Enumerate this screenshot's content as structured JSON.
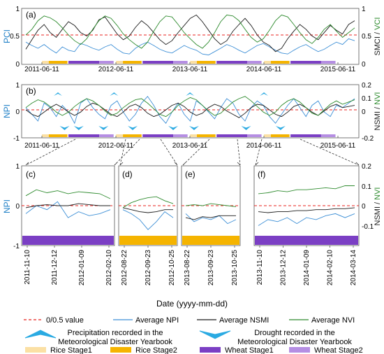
{
  "colors": {
    "red": "#e8231f",
    "blue": "#3d8fd6",
    "black": "#1a1a1a",
    "green": "#2e8b2e",
    "pci_label": "#1e7fc6",
    "vci_label": "#2e8b2e",
    "rice1": "#fbe0a4",
    "rice2": "#f5b400",
    "wheat1": "#7b3fc4",
    "wheat2": "#b58ee3",
    "symbol": "#2aaae2"
  },
  "chart_data": [
    {
      "panel": "(a)",
      "type": "line",
      "x_range": [
        "2011-06-11",
        "2015-06-11"
      ],
      "ylim_left": [
        0,
        1
      ],
      "ylim_right": [
        0,
        1
      ],
      "y_ticks_left": [
        "0",
        "0.5",
        "1"
      ],
      "y_ticks_right": [
        "0",
        "0.5",
        "1"
      ],
      "x_ticks": [
        "2011-06-11",
        "2012-06-11",
        "2013-06-11",
        "2014-06-11",
        "2015-06-11"
      ],
      "ylabel_left": "PCI",
      "ylabel_right_a": "SMCI",
      "ylabel_sep": " / ",
      "ylabel_right_b": "VCI",
      "reference_line": 0.5,
      "series": [
        {
          "name": "Average NPI",
          "values": [
            0.35,
            0.28,
            0.22,
            0.3,
            0.2,
            0.12,
            0.25,
            0.18,
            0.15,
            0.32,
            0.28,
            0.22,
            0.18,
            0.25,
            0.3,
            0.2,
            0.12,
            0.1,
            0.22,
            0.3,
            0.35,
            0.28,
            0.2,
            0.15,
            0.12,
            0.2,
            0.28,
            0.22,
            0.18,
            0.1,
            0.08,
            0.15,
            0.22,
            0.3,
            0.25,
            0.18,
            0.12,
            0.2,
            0.28,
            0.32,
            0.25,
            0.18,
            0.12,
            0.1,
            0.18,
            0.25,
            0.3,
            0.22,
            0.15,
            0.2,
            0.28,
            0.35,
            0.3,
            0.42,
            0.38
          ]
        },
        {
          "name": "Average NSMI",
          "values": [
            0.2,
            0.4,
            0.6,
            0.72,
            0.55,
            0.45,
            0.62,
            0.78,
            0.7,
            0.55,
            0.48,
            0.6,
            0.82,
            0.88,
            0.7,
            0.52,
            0.4,
            0.48,
            0.66,
            0.8,
            0.7,
            0.55,
            0.4,
            0.3,
            0.38,
            0.55,
            0.7,
            0.85,
            0.92,
            0.78,
            0.6,
            0.42,
            0.3,
            0.38,
            0.58,
            0.72,
            0.85,
            0.7,
            0.5,
            0.35,
            0.28,
            0.15,
            0.22,
            0.42,
            0.58,
            0.72,
            0.62,
            0.48,
            0.4,
            0.55,
            0.7,
            0.6,
            0.52,
            0.72,
            0.8
          ]
        },
        {
          "name": "Average NVI",
          "values": [
            0.5,
            0.62,
            0.8,
            0.9,
            0.86,
            0.78,
            0.65,
            0.5,
            0.38,
            0.3,
            0.42,
            0.62,
            0.8,
            0.9,
            0.85,
            0.7,
            0.52,
            0.4,
            0.3,
            0.22,
            0.35,
            0.58,
            0.78,
            0.9,
            0.88,
            0.72,
            0.55,
            0.42,
            0.3,
            0.22,
            0.35,
            0.55,
            0.78,
            0.92,
            0.9,
            0.8,
            0.62,
            0.45,
            0.35,
            0.42,
            0.6,
            0.8,
            0.92,
            0.88,
            0.72,
            0.55,
            0.4,
            0.32,
            0.45,
            0.62,
            0.72,
            0.58,
            0.45,
            0.55,
            0.65
          ]
        }
      ]
    },
    {
      "panel": "(b)",
      "type": "line",
      "x_range": [
        "2011-06-11",
        "2015-06-11"
      ],
      "ylim_left": [
        -1,
        1
      ],
      "ylim_right": [
        -0.2,
        0.2
      ],
      "y_ticks_left": [
        "-1",
        "0",
        "1"
      ],
      "y_ticks_right": [
        "-0.2",
        "0",
        "0.1",
        "0.2"
      ],
      "x_ticks": [
        "2011-06-11",
        "2012-06-11",
        "2013-06-11",
        "2014-06-11",
        "2015-06-11"
      ],
      "ylabel_left": "NPI",
      "ylabel_right_a": "NSMI",
      "ylabel_sep": " / ",
      "ylabel_right_b": "NVI",
      "reference_line": 0,
      "series": [
        {
          "name": "Average NPI",
          "values": [
            0.1,
            -0.2,
            -0.5,
            0.3,
            0.1,
            -0.3,
            0.2,
            -0.1,
            -0.6,
            0.3,
            0.5,
            0.1,
            -0.2,
            -0.4,
            0.2,
            0.4,
            -0.1,
            -0.5,
            -0.2,
            0.3,
            0.6,
            0.2,
            -0.3,
            -0.6,
            -0.1,
            0.3,
            -0.2,
            -0.5,
            0.4,
            0.2,
            -0.1,
            -0.4,
            0.1,
            0.5,
            0.3,
            -0.2,
            -0.5,
            0.1,
            0.4,
            0.2,
            -0.3,
            -0.6,
            -0.2,
            0.2,
            0.5,
            0.1,
            -0.3,
            0.2,
            0.4,
            -0.1,
            -0.3,
            0.2,
            0.1,
            0.3,
            0.5
          ]
        },
        {
          "name": "Average NSMI",
          "values": [
            0.0,
            -0.04,
            -0.06,
            -0.02,
            0.02,
            0.05,
            0.02,
            -0.02,
            -0.05,
            -0.02,
            0.03,
            0.06,
            0.04,
            0.0,
            -0.04,
            -0.06,
            -0.02,
            0.03,
            0.05,
            0.02,
            -0.03,
            -0.06,
            -0.04,
            0.0,
            0.04,
            0.06,
            0.03,
            -0.02,
            -0.05,
            -0.03,
            0.02,
            0.05,
            0.03,
            -0.01,
            -0.04,
            -0.07,
            -0.03,
            0.02,
            0.05,
            0.04,
            0.0,
            -0.04,
            -0.06,
            -0.02,
            0.03,
            0.05,
            0.02,
            -0.02,
            -0.05,
            -0.01,
            0.03,
            0.05,
            0.02,
            0.03,
            0.04
          ]
        },
        {
          "name": "Average NVI",
          "values": [
            0.02,
            0.06,
            0.09,
            0.07,
            0.03,
            -0.02,
            -0.05,
            -0.02,
            0.03,
            0.07,
            0.1,
            0.08,
            0.04,
            -0.01,
            -0.05,
            -0.03,
            0.02,
            0.06,
            0.09,
            0.1,
            0.06,
            0.01,
            -0.04,
            -0.06,
            -0.02,
            0.04,
            0.08,
            0.11,
            0.09,
            0.04,
            -0.01,
            -0.05,
            -0.03,
            0.02,
            0.07,
            0.1,
            0.12,
            0.08,
            0.03,
            -0.02,
            -0.05,
            -0.02,
            0.04,
            0.08,
            0.1,
            0.07,
            0.02,
            -0.03,
            -0.05,
            0.0,
            0.05,
            0.08,
            0.05,
            0.07,
            0.09
          ]
        }
      ],
      "precipitation_dates": [
        "2011-08-20",
        "2012-06-01",
        "2013-06-11",
        "2014-06-11"
      ],
      "drought_dates": [
        "2011-10-01",
        "2011-12-10",
        "2012-04-10",
        "2012-09-01",
        "2013-03-20",
        "2013-07-01",
        "2014-03-15",
        "2014-09-01"
      ]
    },
    {
      "panel": "(c)",
      "type": "line",
      "ylim_left": [
        -1,
        1
      ],
      "ylim_right": [
        -0.2,
        0.2
      ],
      "x_ticks": [
        "2011-11-10",
        "2011-12-12",
        "2012-01-09",
        "2012-02-10"
      ],
      "series": [
        {
          "name": "Average NPI",
          "values": [
            -0.2,
            0.0,
            -0.1,
            0.1,
            -0.3,
            -0.15,
            -0.25,
            -0.2,
            -0.1
          ]
        },
        {
          "name": "Average NSMI",
          "values": [
            -0.01,
            0.0,
            0.005,
            0.0,
            0.0,
            0.01,
            0.005,
            0.0,
            0.0
          ]
        },
        {
          "name": "Average NVI",
          "values": [
            0.05,
            0.08,
            0.065,
            0.075,
            0.06,
            0.07,
            0.065,
            0.06,
            0.035
          ]
        }
      ]
    },
    {
      "panel": "(d)",
      "type": "line",
      "ylim_left": [
        -1,
        1
      ],
      "ylim_right": [
        -0.2,
        0.2
      ],
      "x_ticks": [
        "2012-08-22",
        "2012-09-23",
        "2012-10-25"
      ],
      "series": [
        {
          "name": "Average NPI",
          "values": [
            -0.1,
            -0.2,
            -0.35,
            -0.6,
            -0.4,
            -0.15,
            -0.3
          ]
        },
        {
          "name": "Average NSMI",
          "values": [
            -0.01,
            -0.02,
            -0.03,
            -0.035,
            -0.03,
            -0.02,
            -0.02
          ]
        },
        {
          "name": "Average NVI",
          "values": [
            -0.01,
            0.015,
            0.03,
            0.04,
            0.045,
            0.025,
            0.01
          ]
        }
      ]
    },
    {
      "panel": "(e)",
      "type": "line",
      "ylim_left": [
        -1,
        1
      ],
      "ylim_right": [
        -0.2,
        0.2
      ],
      "x_ticks": [
        "2013-08-22",
        "2013-09-23",
        "2013-10-25"
      ],
      "series": [
        {
          "name": "Average NPI",
          "values": [
            -0.2,
            -0.4,
            -0.3,
            -0.35,
            -0.25,
            -0.45,
            -0.35
          ]
        },
        {
          "name": "Average NSMI",
          "values": [
            -0.06,
            -0.07,
            -0.055,
            -0.06,
            -0.05,
            -0.05,
            -0.05
          ]
        },
        {
          "name": "Average NVI",
          "values": [
            0.0,
            0.005,
            0.0,
            0.01,
            0.005,
            0.0,
            -0.005
          ]
        }
      ]
    },
    {
      "panel": "(f)",
      "type": "line",
      "ylim_left": [
        -1,
        1
      ],
      "ylim_right": [
        -0.2,
        0.2
      ],
      "x_ticks": [
        "2013-11-10",
        "2013-12-12",
        "2014-01-09",
        "2014-02-10",
        "2014-03-14"
      ],
      "series": [
        {
          "name": "Average NPI",
          "values": [
            -0.5,
            -0.35,
            -0.4,
            -0.3,
            -0.45,
            -0.3,
            -0.35,
            -0.25,
            -0.2,
            -0.3,
            -0.2
          ]
        },
        {
          "name": "Average NSMI",
          "values": [
            -0.03,
            -0.035,
            -0.03,
            -0.03,
            -0.025,
            -0.025,
            -0.02,
            -0.02,
            -0.015,
            -0.015,
            -0.01
          ]
        },
        {
          "name": "Average NVI",
          "values": [
            0.06,
            0.065,
            0.075,
            0.07,
            0.08,
            0.08,
            0.085,
            0.09,
            0.085,
            0.1,
            0.1
          ]
        }
      ]
    }
  ],
  "zoom_shared": {
    "y_ticks_left": [
      "-1",
      "0",
      "1"
    ],
    "y_ticks_right": [
      "-0.1",
      "0",
      "0.1",
      "0.2"
    ],
    "ylabel_left": "NPI",
    "ylabel_right_a": "NSMI",
    "ylabel_sep": " / ",
    "ylabel_right_b": "NVI",
    "xlabel": "Date (yyyy-mm-dd)"
  },
  "legend": {
    "ref_line": "0/0.5 value",
    "npi": "Average NPI",
    "nsmi": "Average NSMI",
    "nvi": "Average NVI",
    "precip_line1": "Precipitation recorded in the",
    "precip_line2": "Meteorological  Disaster Yearbook",
    "drought_line1": "Drought recorded in the",
    "drought_line2": "Meteorological  Disaster Yearbook",
    "rice1": "Rice Stage1",
    "rice2": "Rice Stage2",
    "wheat1": "Wheat Stage1",
    "wheat2": "Wheat Stage2"
  }
}
